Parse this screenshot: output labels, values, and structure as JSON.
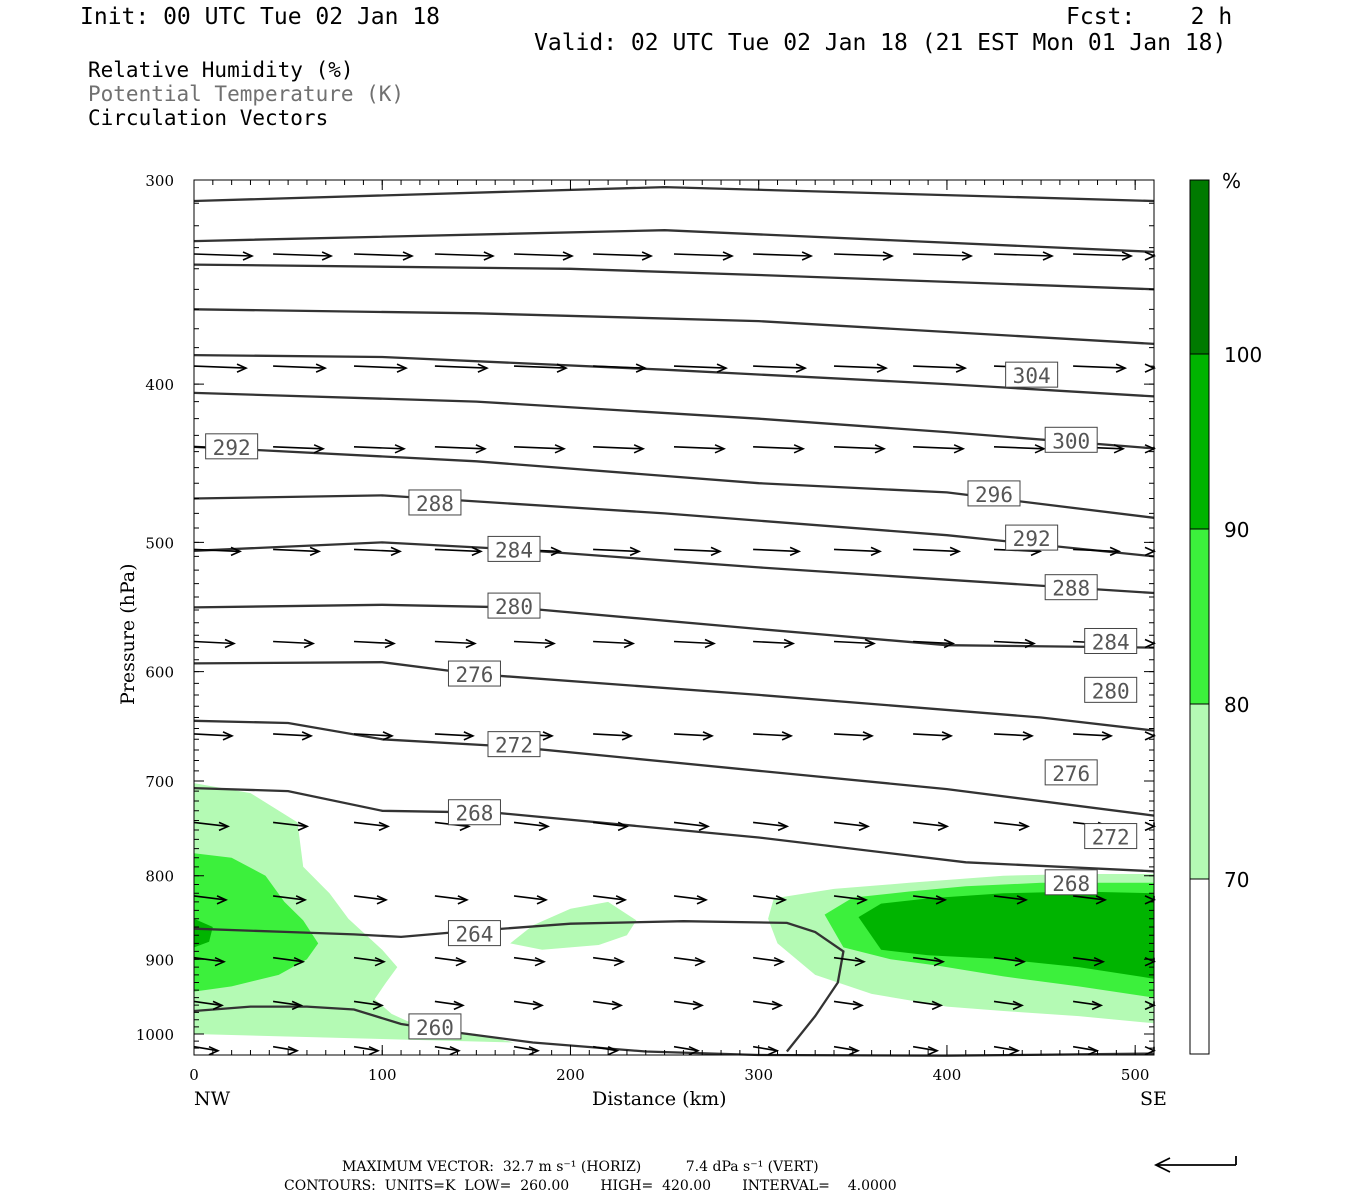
{
  "header": {
    "init": "Init: 00 UTC Tue 02 Jan 18",
    "fcst": "Fcst:    2 h",
    "valid": "Valid: 02 UTC Tue 02 Jan 18 (21 EST Mon 01 Jan 18)",
    "fields": [
      {
        "label": "Relative Humidity (%)",
        "color": "#000000"
      },
      {
        "label": "Potential Temperature (K)",
        "color": "#707070"
      },
      {
        "label": "Circulation Vectors",
        "color": "#000000"
      }
    ]
  },
  "chart_data": {
    "type": "contour",
    "xlabel": "Distance (km)",
    "ylabel": "Pressure (hPa)",
    "xlim": [
      0,
      510
    ],
    "ylim": [
      1030,
      300
    ],
    "yscale": "log",
    "x_ticks": [
      "0",
      "100",
      "200",
      "300",
      "400",
      "500"
    ],
    "y_ticks": [
      "300",
      "400",
      "500",
      "600",
      "700",
      "800",
      "900",
      "1000"
    ],
    "x_end_labels": {
      "left": "NW",
      "right": "SE"
    },
    "colorbar": {
      "unit": "%",
      "labels": [
        "100",
        "90",
        "80",
        "70"
      ],
      "colors": [
        "#007a00",
        "#00b400",
        "#3cf03c",
        "#b4fab4",
        "#ffffff"
      ]
    },
    "isentrope_labels": [
      {
        "text": "304",
        "x": 445,
        "p": 395
      },
      {
        "text": "300",
        "x": 466,
        "p": 433
      },
      {
        "text": "296",
        "x": 425,
        "p": 467
      },
      {
        "text": "292",
        "x": 20,
        "p": 437
      },
      {
        "text": "292",
        "x": 445,
        "p": 497
      },
      {
        "text": "288",
        "x": 128,
        "p": 473
      },
      {
        "text": "288",
        "x": 466,
        "p": 533
      },
      {
        "text": "284",
        "x": 170,
        "p": 505
      },
      {
        "text": "284",
        "x": 487,
        "p": 575
      },
      {
        "text": "280",
        "x": 170,
        "p": 547
      },
      {
        "text": "280",
        "x": 487,
        "p": 616
      },
      {
        "text": "276",
        "x": 149,
        "p": 602
      },
      {
        "text": "276",
        "x": 466,
        "p": 692
      },
      {
        "text": "272",
        "x": 170,
        "p": 665
      },
      {
        "text": "272",
        "x": 487,
        "p": 757
      },
      {
        "text": "268",
        "x": 149,
        "p": 732
      },
      {
        "text": "268",
        "x": 466,
        "p": 808
      },
      {
        "text": "264",
        "x": 149,
        "p": 868
      },
      {
        "text": "260",
        "x": 128,
        "p": 990
      }
    ],
    "footer": {
      "max_vector": "MAXIMUM VECTOR:  32.7 m s⁻¹ (HORIZ)          7.4 dPa s⁻¹ (VERT)",
      "contours": "CONTOURS:  UNITS=K  LOW=  260.00       HIGH=  420.00       INTERVAL=    4.0000"
    }
  }
}
